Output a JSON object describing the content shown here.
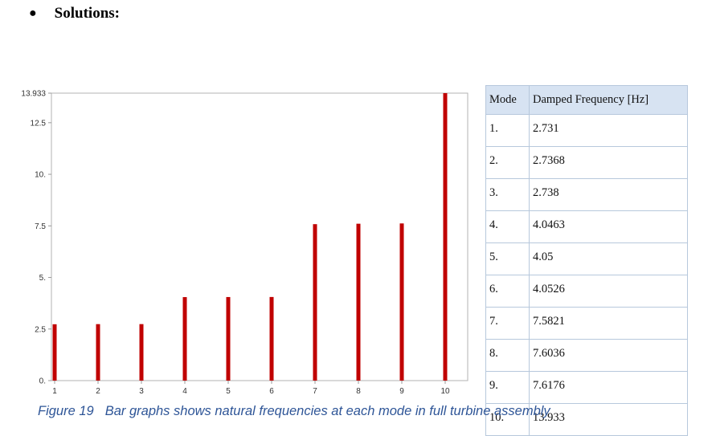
{
  "heading": {
    "bullet": "●",
    "text": "Solutions:"
  },
  "chart_data": {
    "type": "bar",
    "categories": [
      "1",
      "2",
      "3",
      "4",
      "5",
      "6",
      "7",
      "8",
      "9",
      "10"
    ],
    "values": [
      2.731,
      2.7368,
      2.738,
      4.0463,
      4.05,
      4.0526,
      7.5821,
      7.6036,
      7.6176,
      13.933
    ],
    "yticks": [
      "0.",
      "2.5",
      "5.",
      "7.5",
      "10.",
      "12.5",
      "13.933"
    ],
    "ylim": [
      0,
      13.933
    ],
    "grid": false,
    "bar_color": "#c00000"
  },
  "table": {
    "headers": [
      "Mode",
      "Damped Frequency [Hz]"
    ],
    "rows": [
      [
        "1.",
        "2.731"
      ],
      [
        "2.",
        "2.7368"
      ],
      [
        "3.",
        "2.738"
      ],
      [
        "4.",
        "4.0463"
      ],
      [
        "5.",
        "4.05"
      ],
      [
        "6.",
        "4.0526"
      ],
      [
        "7.",
        "7.5821"
      ],
      [
        "8.",
        "7.6036"
      ],
      [
        "9.",
        "7.6176"
      ],
      [
        "10.",
        "13.933"
      ]
    ]
  },
  "caption": {
    "number": "Figure 19",
    "text": "Bar graphs shows natural frequencies at each mode in full turbine assembly"
  }
}
